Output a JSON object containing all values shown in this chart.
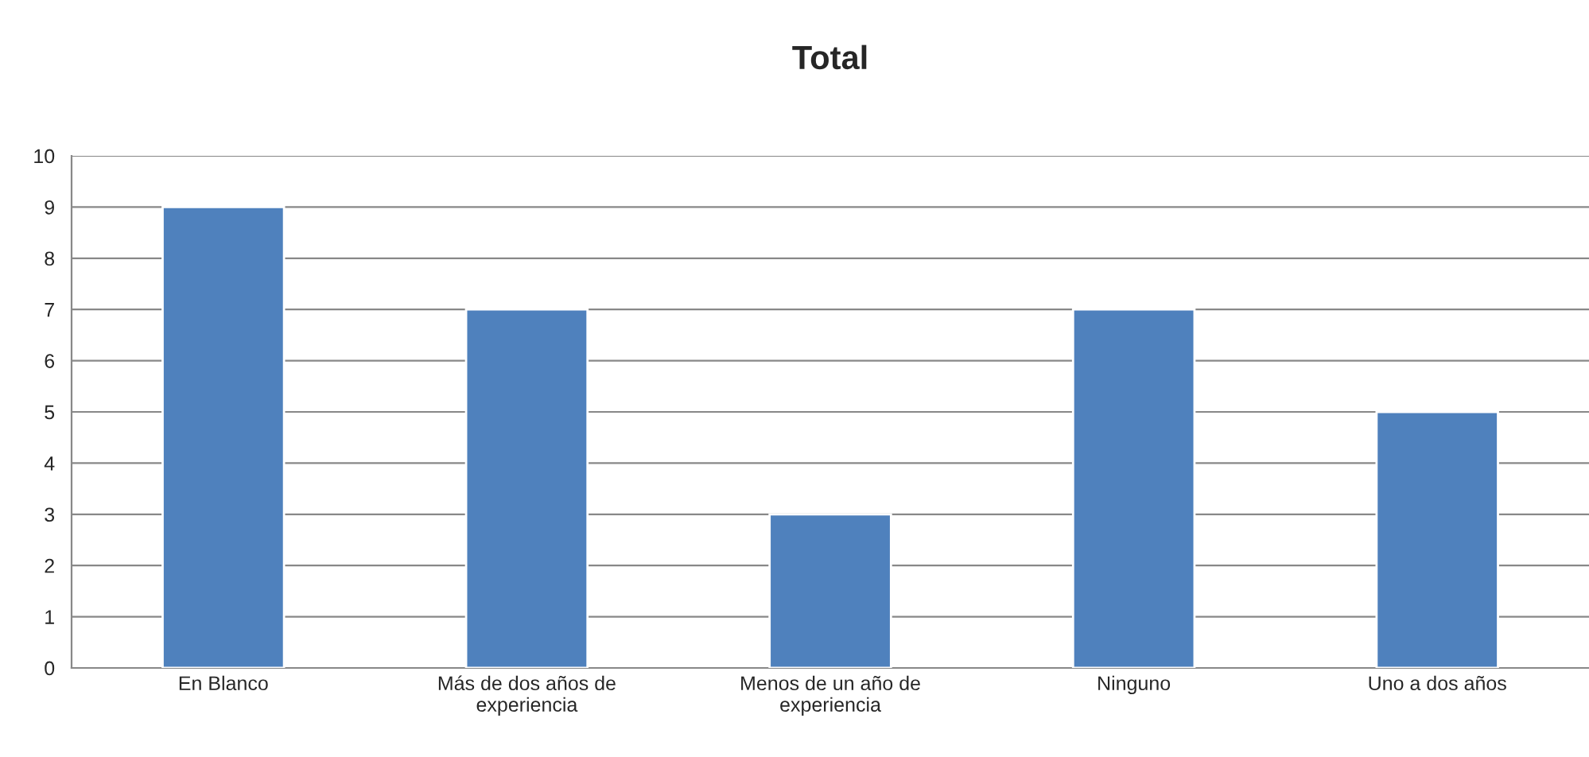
{
  "chart_data": {
    "type": "bar",
    "title": "Total",
    "categories": [
      "En Blanco",
      "Más de dos años de\nexperiencia",
      "Menos de un año de\nexperiencia",
      "Ninguno",
      "Uno a dos años"
    ],
    "values": [
      9,
      7,
      3,
      7,
      5
    ],
    "color": "#4f81bd",
    "ylim": [
      0,
      10
    ],
    "yticks": [
      0,
      1,
      2,
      3,
      4,
      5,
      6,
      7,
      8,
      9,
      10
    ],
    "grid": "y",
    "legend": false
  }
}
